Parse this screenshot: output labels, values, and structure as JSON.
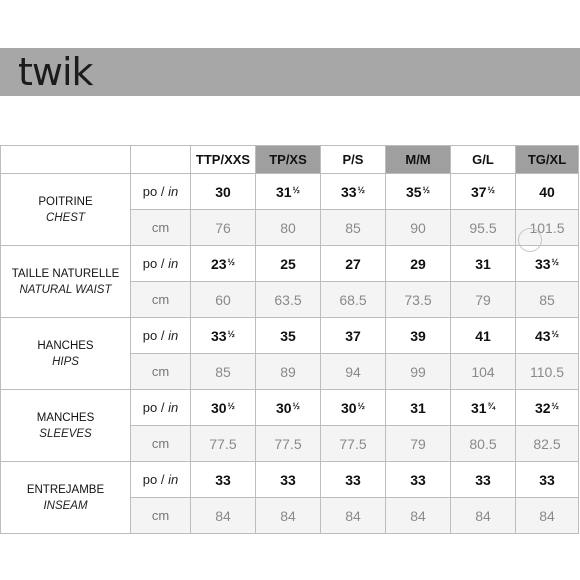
{
  "brand": "twik",
  "sizes": [
    {
      "label": "TTP/XXS",
      "highlight": false
    },
    {
      "label": "TP/XS",
      "highlight": true
    },
    {
      "label": "P/S",
      "highlight": false
    },
    {
      "label": "M/M",
      "highlight": true
    },
    {
      "label": "G/L",
      "highlight": false
    },
    {
      "label": "TG/XL",
      "highlight": true
    }
  ],
  "units": {
    "po_prefix": "po / ",
    "po_suffix": "in",
    "cm": "cm"
  },
  "measurements": [
    {
      "fr": "POITRINE",
      "en": "CHEST",
      "inches": [
        [
          "30",
          ""
        ],
        [
          "31",
          "½"
        ],
        [
          "33",
          "½"
        ],
        [
          "35",
          "½"
        ],
        [
          "37",
          "½"
        ],
        [
          "40",
          ""
        ]
      ],
      "cm": [
        "76",
        "80",
        "85",
        "90",
        "95.5",
        "101.5"
      ]
    },
    {
      "fr": "TAILLE NATURELLE",
      "en": "NATURAL WAIST",
      "inches": [
        [
          "23",
          "½"
        ],
        [
          "25",
          ""
        ],
        [
          "27",
          ""
        ],
        [
          "29",
          ""
        ],
        [
          "31",
          ""
        ],
        [
          "33",
          "½"
        ]
      ],
      "cm": [
        "60",
        "63.5",
        "68.5",
        "73.5",
        "79",
        "85"
      ]
    },
    {
      "fr": "HANCHES",
      "en": "HIPS",
      "inches": [
        [
          "33",
          "½"
        ],
        [
          "35",
          ""
        ],
        [
          "37",
          ""
        ],
        [
          "39",
          ""
        ],
        [
          "41",
          ""
        ],
        [
          "43",
          "½"
        ]
      ],
      "cm": [
        "85",
        "89",
        "94",
        "99",
        "104",
        "110.5"
      ]
    },
    {
      "fr": "MANCHES",
      "en": "SLEEVES",
      "inches": [
        [
          "30",
          "½"
        ],
        [
          "30",
          "½"
        ],
        [
          "30",
          "½"
        ],
        [
          "31",
          ""
        ],
        [
          "31",
          "¾"
        ],
        [
          "32",
          "½"
        ]
      ],
      "cm": [
        "77.5",
        "77.5",
        "77.5",
        "79",
        "80.5",
        "82.5"
      ]
    },
    {
      "fr": "ENTREJAMBE",
      "en": "INSEAM",
      "inches": [
        [
          "33",
          ""
        ],
        [
          "33",
          ""
        ],
        [
          "33",
          ""
        ],
        [
          "33",
          ""
        ],
        [
          "33",
          ""
        ],
        [
          "33",
          ""
        ]
      ],
      "cm": [
        "84",
        "84",
        "84",
        "84",
        "84",
        "84"
      ]
    }
  ]
}
